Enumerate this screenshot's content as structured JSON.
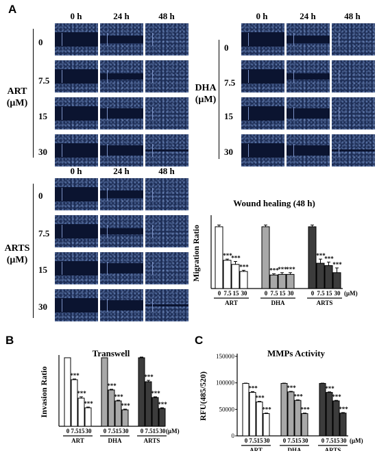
{
  "panel_labels": {
    "a": "A",
    "b": "B",
    "c": "C"
  },
  "time_headers": [
    "0 h",
    "24 h",
    "48 h"
  ],
  "concentrations": [
    "0",
    "7.5",
    "15",
    "30"
  ],
  "groups": {
    "art": {
      "name": "ART",
      "unit": "(μM)"
    },
    "dha": {
      "name": "DHA",
      "unit": "(μM)"
    },
    "arts": {
      "name": "ARTS",
      "unit": "(μM)"
    }
  },
  "microscopy": {
    "wound_gap_fraction": {
      "0 h": 0.45,
      "24 h": [
        0.25,
        0.18,
        0.3,
        0.3
      ],
      "48 h": [
        0.0,
        0.0,
        0.0,
        0.05
      ]
    }
  },
  "colors": {
    "ctrl": "#ffffff",
    "art": "#ffffff",
    "dha": "#a8a8a8",
    "arts": "#3c3c3c",
    "tile": "#1e2e56"
  },
  "chart_data": [
    {
      "type": "bar",
      "title": "Wound healing (48 h)",
      "ylabel": "Migration Ratio",
      "xunit": "(μM)",
      "categories": [
        "0",
        "7.5",
        "15",
        "30"
      ],
      "ylim": [
        0,
        1.2
      ],
      "series": [
        {
          "name": "ART",
          "values": [
            1.05,
            0.48,
            0.41,
            0.29
          ],
          "errors": [
            0.03,
            0.02,
            0.05,
            0.02
          ],
          "sig": [
            "",
            "***",
            "***",
            "***"
          ]
        },
        {
          "name": "DHA",
          "values": [
            1.05,
            0.23,
            0.24,
            0.24
          ],
          "errors": [
            0.03,
            0.02,
            0.03,
            0.03
          ],
          "sig": [
            "",
            "***",
            "***",
            "***"
          ]
        },
        {
          "name": "ARTS",
          "values": [
            1.05,
            0.43,
            0.39,
            0.27
          ],
          "errors": [
            0.03,
            0.07,
            0.06,
            0.08
          ],
          "sig": [
            "",
            "***",
            "***",
            "***"
          ]
        }
      ]
    },
    {
      "type": "bar",
      "title": "Transwell",
      "ylabel": "Invasion Ratio",
      "xunit": "(μM)",
      "categories": [
        "0",
        "7.5",
        "15",
        "30"
      ],
      "ylim": [
        0,
        1.0
      ],
      "series": [
        {
          "name": "ART",
          "values": [
            1.0,
            0.68,
            0.41,
            0.27
          ],
          "errors": [
            0,
            0.01,
            0.02,
            0.01
          ],
          "sig": [
            "",
            "***",
            "***",
            "***"
          ]
        },
        {
          "name": "DHA",
          "values": [
            1.0,
            0.53,
            0.37,
            0.24
          ],
          "errors": [
            0,
            0.01,
            0.01,
            0.01
          ],
          "sig": [
            "",
            "***",
            "***",
            "***"
          ]
        },
        {
          "name": "ARTS",
          "values": [
            1.0,
            0.65,
            0.42,
            0.26
          ],
          "errors": [
            0.01,
            0.02,
            0.01,
            0.01
          ],
          "sig": [
            "",
            "***",
            "***",
            "***"
          ]
        }
      ]
    },
    {
      "type": "bar",
      "title": "MMPs Activity",
      "ylabel": "RFU(485/520)",
      "xunit": "(μM)",
      "categories": [
        "0",
        "7.5",
        "15",
        "30"
      ],
      "ylim": [
        0,
        150000
      ],
      "yticks": [
        "0",
        "50000",
        "100000",
        "150000"
      ],
      "series": [
        {
          "name": "ART",
          "values": [
            99000,
            82000,
            64000,
            42000
          ],
          "errors": [
            500,
            1500,
            1000,
            1000
          ],
          "sig": [
            "",
            "***",
            "***",
            "***"
          ]
        },
        {
          "name": "DHA",
          "values": [
            99000,
            83000,
            67000,
            42000
          ],
          "errors": [
            500,
            1000,
            1000,
            1000
          ],
          "sig": [
            "",
            "***",
            "***",
            "***"
          ]
        },
        {
          "name": "ARTS",
          "values": [
            99000,
            82000,
            66000,
            43000
          ],
          "errors": [
            500,
            1000,
            1000,
            1000
          ],
          "sig": [
            "",
            "***",
            "***",
            "***"
          ]
        }
      ]
    }
  ]
}
